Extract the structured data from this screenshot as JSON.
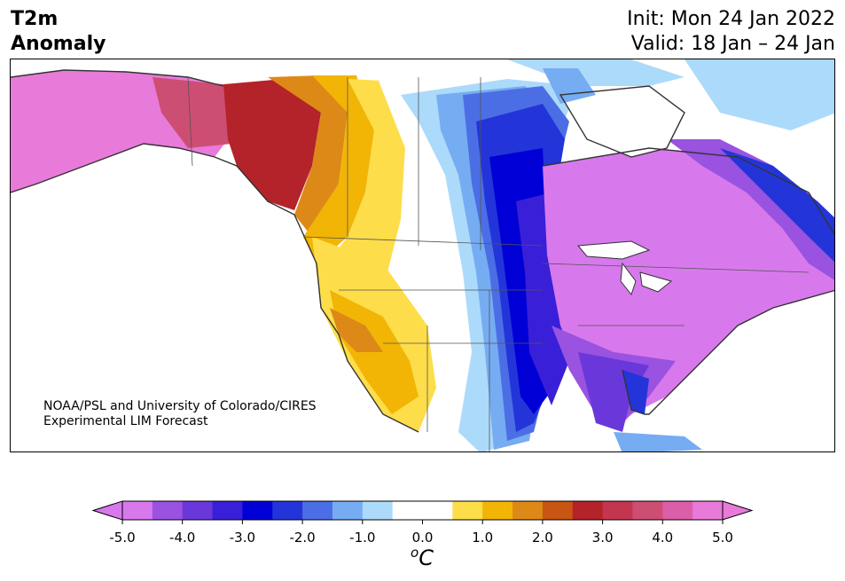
{
  "title": {
    "line1": "T2m",
    "line2": "Anomaly"
  },
  "subtitle": {
    "init": "Init: Mon 24 Jan 2022",
    "valid": "Valid: 18 Jan – 24 Jan"
  },
  "credit": {
    "line1": "NOAA/PSL and University of Colorado/CIRES",
    "line2": "Experimental LIM Forecast"
  },
  "colorbar": {
    "unit_base": "C",
    "unit_sup": "o",
    "ticks": [
      "-5.0",
      "-4.0",
      "-3.0",
      "-2.0",
      "-1.0",
      "0.0",
      "1.0",
      "2.0",
      "3.0",
      "4.0",
      "5.0"
    ],
    "min": -5.0,
    "max": 5.0,
    "step": 0.5,
    "colors": [
      "#d779ec",
      "#9a52e0",
      "#6a37db",
      "#3a1fd8",
      "#0000d6",
      "#2335d9",
      "#4c6ee5",
      "#76acf2",
      "#acdafa",
      "#ffffff",
      "#ffffff",
      "#fddd4a",
      "#f2b505",
      "#dd8918",
      "#c85512",
      "#b42329",
      "#c4364f",
      "#cd4e73",
      "#db5ea8",
      "#e87ad9"
    ],
    "under_color": "#d779ec",
    "over_color": "#e87ad9"
  }
}
